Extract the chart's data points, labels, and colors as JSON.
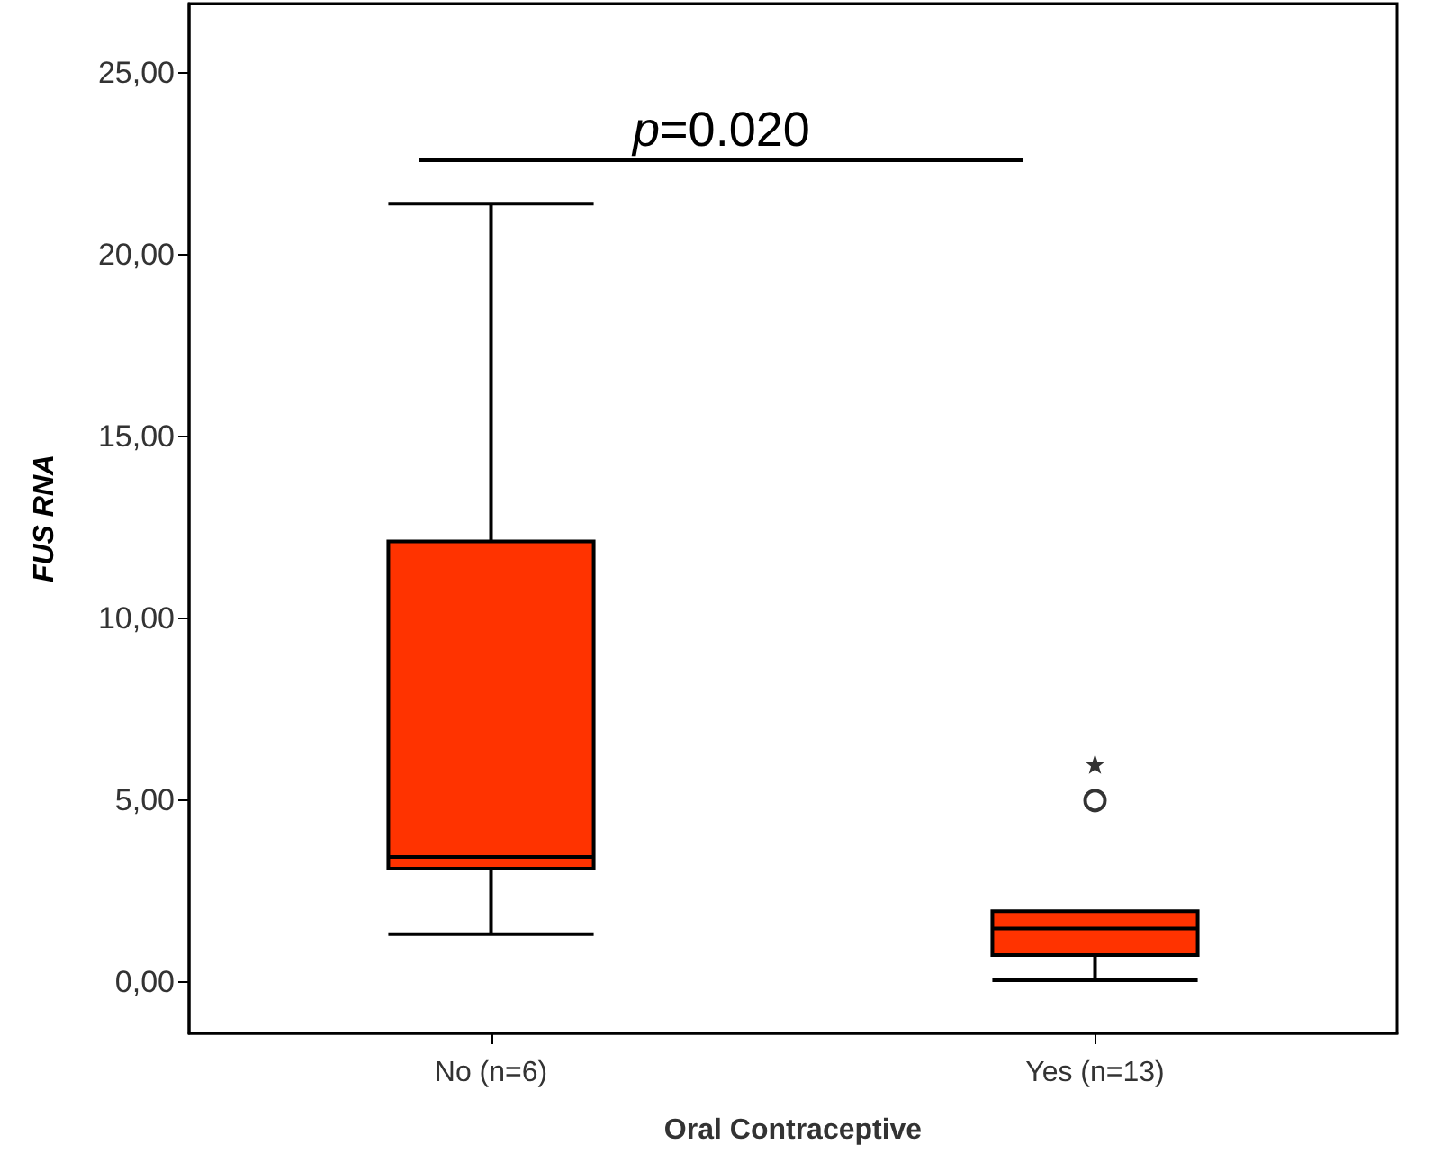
{
  "chart_data": {
    "type": "box",
    "xlabel": "Oral Contraceptive",
    "ylabel": "FUS RNA",
    "categories": [
      "No (n=6)",
      "Yes (n=13)"
    ],
    "boxes": [
      {
        "low": 1.33,
        "q1": 3.13,
        "median": 3.45,
        "q3": 12.12,
        "high": 21.4
      },
      {
        "low": 0.06,
        "q1": 0.75,
        "median": 1.48,
        "q3": 1.96,
        "high": 1.96,
        "outliers": [
          5.0,
          6.0
        ]
      }
    ],
    "color": "#ff3300",
    "ylim": [
      -1.4,
      26.9
    ],
    "yticks": [
      {
        "value": 0,
        "label": "0,00"
      },
      {
        "value": 5,
        "label": "5,00"
      },
      {
        "value": 10,
        "label": "10,00"
      },
      {
        "value": 15,
        "label": "15,00"
      },
      {
        "value": 20,
        "label": "20,00"
      },
      {
        "value": 25,
        "label": "25,00"
      }
    ],
    "annotations": [
      "p=0.020"
    ],
    "grid": false
  }
}
